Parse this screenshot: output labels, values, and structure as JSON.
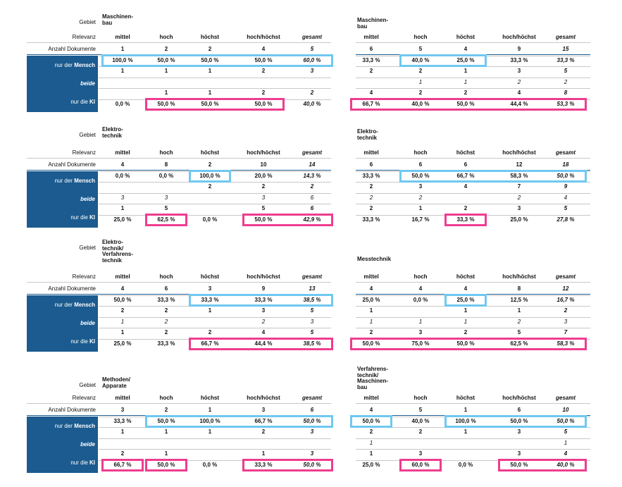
{
  "labels": {
    "gebiet": "Gebiet",
    "relevanz": "Relevanz",
    "anzahl": "Anzahl Dokumente",
    "nur_der": "nur der ",
    "mensch": "Mensch",
    "beide": "beide",
    "nur_die": "nur die ",
    "ki": "KI"
  },
  "colors": {
    "side_bg": "#1b5b8f",
    "highlight_blue": "#6fc8f0",
    "highlight_pink": "#ee3d8f"
  },
  "cols": [
    "mittel",
    "hoch",
    "höchst",
    "hoch/höchst",
    "gesamt"
  ],
  "panels": [
    {
      "title": [
        "Maschinen-",
        "bau"
      ],
      "anzahl": [
        "1",
        "2",
        "2",
        "4",
        "5"
      ],
      "r1": [
        "100,0 %",
        "50,0 %",
        "50,0 %",
        "50,0 %",
        "60,0 %"
      ],
      "r2": [
        "1",
        "1",
        "1",
        "2",
        "3"
      ],
      "r3": [
        "",
        "",
        "",
        "",
        ""
      ],
      "r4": [
        "",
        "1",
        "1",
        "2",
        "2"
      ],
      "r5": [
        "0,0 %",
        "50,0 %",
        "50,0 %",
        "50,0 %",
        "40,0 %"
      ]
    },
    {
      "title": [
        "Maschinen-",
        "bau"
      ],
      "anzahl": [
        "6",
        "5",
        "4",
        "9",
        "15"
      ],
      "r1": [
        "33,3 %",
        "40,0 %",
        "25,0 %",
        "33,3 %",
        "33,3 %"
      ],
      "r2": [
        "2",
        "2",
        "1",
        "3",
        "5"
      ],
      "r3": [
        "",
        "1",
        "1",
        "2",
        "2"
      ],
      "r4": [
        "4",
        "2",
        "2",
        "4",
        "8"
      ],
      "r5": [
        "66,7 %",
        "40,0 %",
        "50,0 %",
        "44,4 %",
        "53,3 %"
      ]
    },
    {
      "title": [
        "Elektro-",
        "technik"
      ],
      "anzahl": [
        "4",
        "8",
        "2",
        "10",
        "14"
      ],
      "r1": [
        "0,0 %",
        "0,0 %",
        "100,0 %",
        "20,0 %",
        "14,3 %"
      ],
      "r2": [
        "",
        "",
        "2",
        "2",
        "2"
      ],
      "r3": [
        "3",
        "3",
        "",
        "3",
        "6"
      ],
      "r4": [
        "1",
        "5",
        "",
        "5",
        "6"
      ],
      "r5": [
        "25,0 %",
        "62,5 %",
        "0,0 %",
        "50,0 %",
        "42,9 %"
      ]
    },
    {
      "title": [
        "Elektro-",
        "technik"
      ],
      "anzahl": [
        "6",
        "6",
        "6",
        "12",
        "18"
      ],
      "r1": [
        "33,3 %",
        "50,0 %",
        "66,7 %",
        "58,3 %",
        "50,0 %"
      ],
      "r2": [
        "2",
        "3",
        "4",
        "7",
        "9"
      ],
      "r3": [
        "2",
        "2",
        "",
        "2",
        "4"
      ],
      "r4": [
        "2",
        "1",
        "2",
        "3",
        "5"
      ],
      "r5": [
        "33,3 %",
        "16,7 %",
        "33,3 %",
        "25,0 %",
        "27,8 %"
      ]
    },
    {
      "title": [
        "Elektro-",
        "technik/",
        "Verfahrens-",
        "technik"
      ],
      "anzahl": [
        "4",
        "6",
        "3",
        "9",
        "13"
      ],
      "r1": [
        "50,0 %",
        "33,3 %",
        "33,3 %",
        "33,3 %",
        "38,5 %"
      ],
      "r2": [
        "2",
        "2",
        "1",
        "3",
        "5"
      ],
      "r3": [
        "1",
        "2",
        "",
        "2",
        "3"
      ],
      "r4": [
        "1",
        "2",
        "2",
        "4",
        "5"
      ],
      "r5": [
        "25,0 %",
        "33,3 %",
        "66,7 %",
        "44,4 %",
        "38,5 %"
      ]
    },
    {
      "title": [
        "Messtechnik"
      ],
      "anzahl": [
        "4",
        "4",
        "4",
        "8",
        "12"
      ],
      "r1": [
        "25,0 %",
        "0,0 %",
        "25,0 %",
        "12,5 %",
        "16,7 %"
      ],
      "r2": [
        "1",
        "",
        "1",
        "1",
        "2"
      ],
      "r3": [
        "1",
        "1",
        "1",
        "2",
        "3"
      ],
      "r4": [
        "2",
        "3",
        "2",
        "5",
        "7"
      ],
      "r5": [
        "50,0 %",
        "75,0 %",
        "50,0 %",
        "62,5 %",
        "58,3 %"
      ]
    },
    {
      "title": [
        "Methoden/",
        "Apparate"
      ],
      "anzahl": [
        "3",
        "2",
        "1",
        "3",
        "6"
      ],
      "r1": [
        "33,3 %",
        "50,0 %",
        "100,0 %",
        "66,7 %",
        "50,0 %"
      ],
      "r2": [
        "1",
        "1",
        "1",
        "2",
        "3"
      ],
      "r3": [
        "",
        "",
        "",
        "",
        ""
      ],
      "r4": [
        "2",
        "1",
        "",
        "1",
        "3"
      ],
      "r5": [
        "66,7 %",
        "50,0 %",
        "0,0 %",
        "33,3 %",
        "50,0 %"
      ]
    },
    {
      "title": [
        "Verfahrens-",
        "technik/",
        "Maschinen-",
        "bau"
      ],
      "anzahl": [
        "4",
        "5",
        "1",
        "6",
        "10"
      ],
      "r1": [
        "50,0 %",
        "40,0 %",
        "100,0 %",
        "50,0 %",
        "50,0 %"
      ],
      "r2": [
        "2",
        "2",
        "1",
        "3",
        "5"
      ],
      "r3": [
        "1",
        "",
        "",
        "",
        "1"
      ],
      "r4": [
        "1",
        "3",
        "",
        "3",
        "4"
      ],
      "r5": [
        "25,0 %",
        "60,0 %",
        "0,0 %",
        "50,0 %",
        "40,0 %"
      ]
    }
  ]
}
